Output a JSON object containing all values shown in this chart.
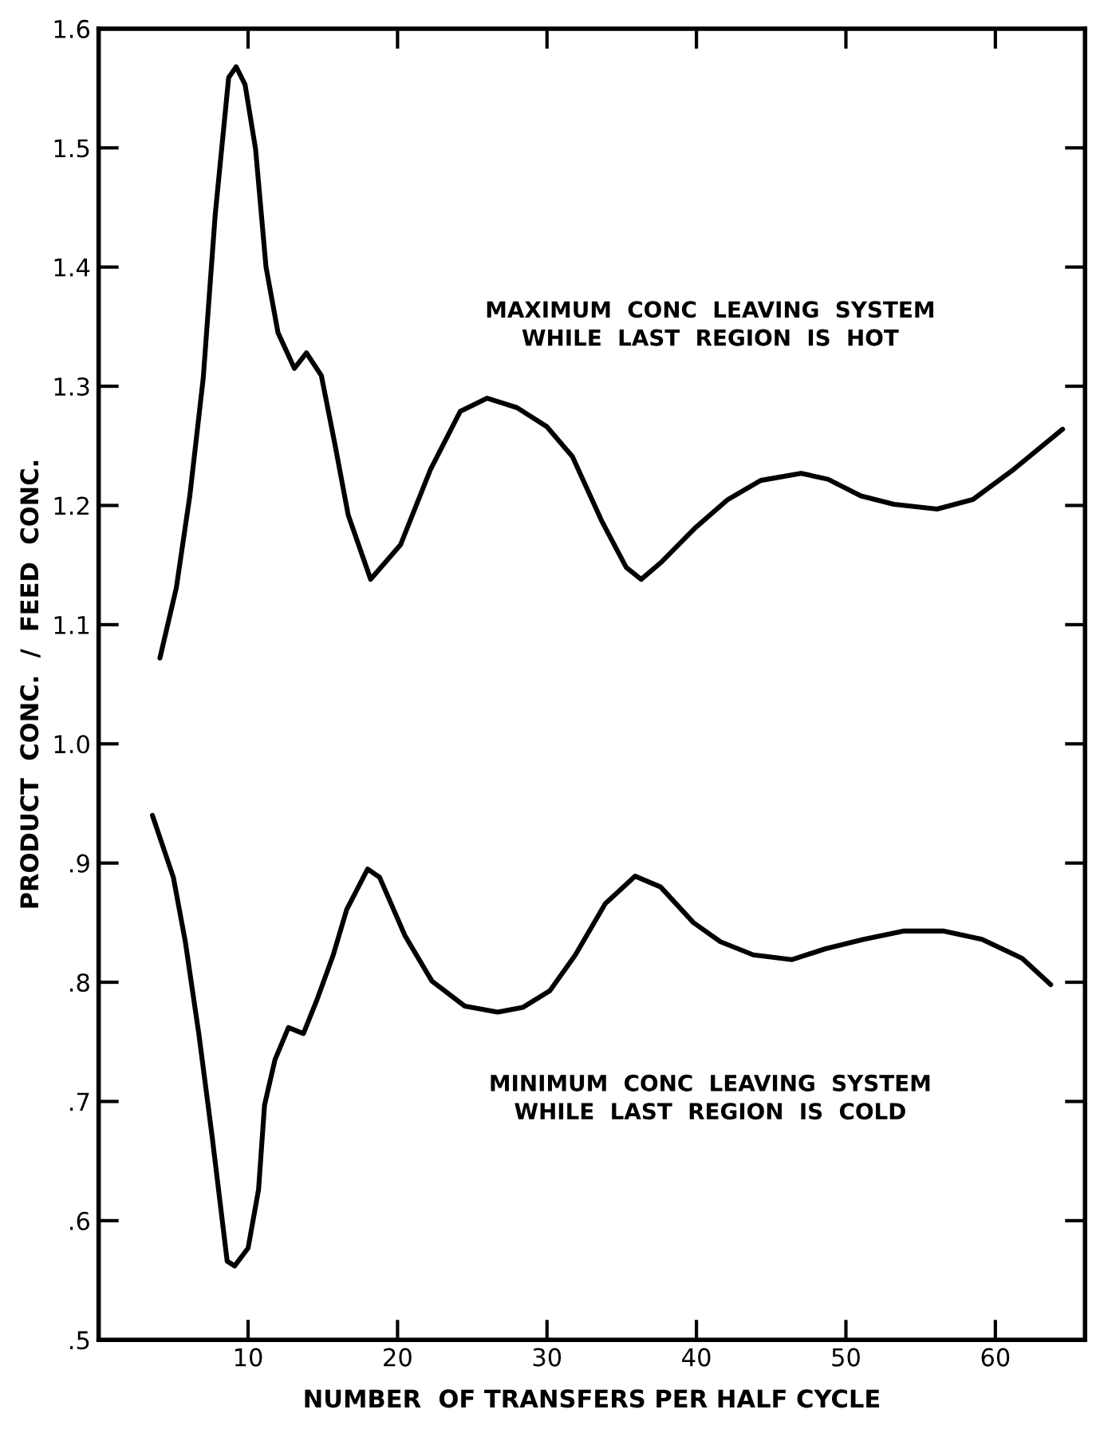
{
  "chart_data": {
    "type": "line",
    "xlabel": "NUMBER  OF TRANSFERS PER HALF CYCLE",
    "ylabel": "PRODUCT  CONC.  /  FEED  CONC.",
    "xlim": [
      0,
      66
    ],
    "xticks": [
      10,
      20,
      30,
      40,
      50,
      60
    ],
    "ylim": [
      0.5,
      1.6
    ],
    "yticks": [
      {
        "value": 0.5,
        "label": ".5"
      },
      {
        "value": 0.6,
        "label": ".6"
      },
      {
        "value": 0.7,
        "label": ".7"
      },
      {
        "value": 0.8,
        "label": ".8"
      },
      {
        "value": 0.9,
        "label": ".9"
      },
      {
        "value": 1.0,
        "label": "1.0"
      },
      {
        "value": 1.1,
        "label": "1.1"
      },
      {
        "value": 1.2,
        "label": "1.2"
      },
      {
        "value": 1.3,
        "label": "1.3"
      },
      {
        "value": 1.4,
        "label": "1.4"
      },
      {
        "value": 1.5,
        "label": "1.5"
      },
      {
        "value": 1.6,
        "label": "1.6"
      }
    ],
    "grid": false,
    "legend": false,
    "marker": "none",
    "line_style": "solid",
    "series": [
      {
        "name": "MAXIMUM  CONC  LEAVING  SYSTEM\nWHILE  LAST  REGION  IS  HOT",
        "color": "#000000",
        "x": [
          4.1,
          5.2,
          6.1,
          7.0,
          7.8,
          8.7,
          9.2,
          9.8,
          10.5,
          11.2,
          12.0,
          13.1,
          13.9,
          14.9,
          15.8,
          16.7,
          18.2,
          20.2,
          22.2,
          24.2,
          26.0,
          28.0,
          30.0,
          31.7,
          33.7,
          35.3,
          36.3,
          37.7,
          39.9,
          42.1,
          44.3,
          47.0,
          48.8,
          51.0,
          53.2,
          56.1,
          58.5,
          61.2,
          64.5
        ],
        "values": [
          1.072,
          1.131,
          1.208,
          1.307,
          1.444,
          1.559,
          1.568,
          1.553,
          1.499,
          1.4,
          1.345,
          1.315,
          1.328,
          1.309,
          1.252,
          1.192,
          1.138,
          1.167,
          1.23,
          1.279,
          1.29,
          1.282,
          1.266,
          1.241,
          1.186,
          1.148,
          1.138,
          1.153,
          1.181,
          1.205,
          1.221,
          1.227,
          1.222,
          1.208,
          1.201,
          1.197,
          1.205,
          1.23,
          1.264
        ]
      },
      {
        "name": "MINIMUM  CONC  LEAVING  SYSTEM\nWHILE  LAST  REGION  IS  COLD",
        "color": "#000000",
        "x": [
          3.6,
          5.0,
          5.8,
          6.7,
          7.6,
          8.6,
          9.1,
          10.0,
          10.7,
          11.1,
          11.8,
          12.7,
          13.7,
          14.6,
          15.7,
          16.6,
          18.0,
          18.8,
          20.5,
          22.3,
          24.5,
          26.7,
          28.4,
          30.2,
          31.9,
          33.9,
          35.9,
          37.6,
          39.8,
          41.6,
          43.8,
          46.4,
          48.6,
          51.2,
          53.9,
          56.5,
          59.1,
          61.8,
          63.7
        ],
        "values": [
          0.94,
          0.888,
          0.834,
          0.757,
          0.67,
          0.566,
          0.562,
          0.577,
          0.626,
          0.697,
          0.735,
          0.762,
          0.757,
          0.785,
          0.823,
          0.861,
          0.895,
          0.888,
          0.839,
          0.801,
          0.78,
          0.775,
          0.779,
          0.793,
          0.823,
          0.866,
          0.889,
          0.88,
          0.85,
          0.834,
          0.823,
          0.819,
          0.828,
          0.836,
          0.843,
          0.843,
          0.836,
          0.82,
          0.798
        ]
      }
    ]
  }
}
